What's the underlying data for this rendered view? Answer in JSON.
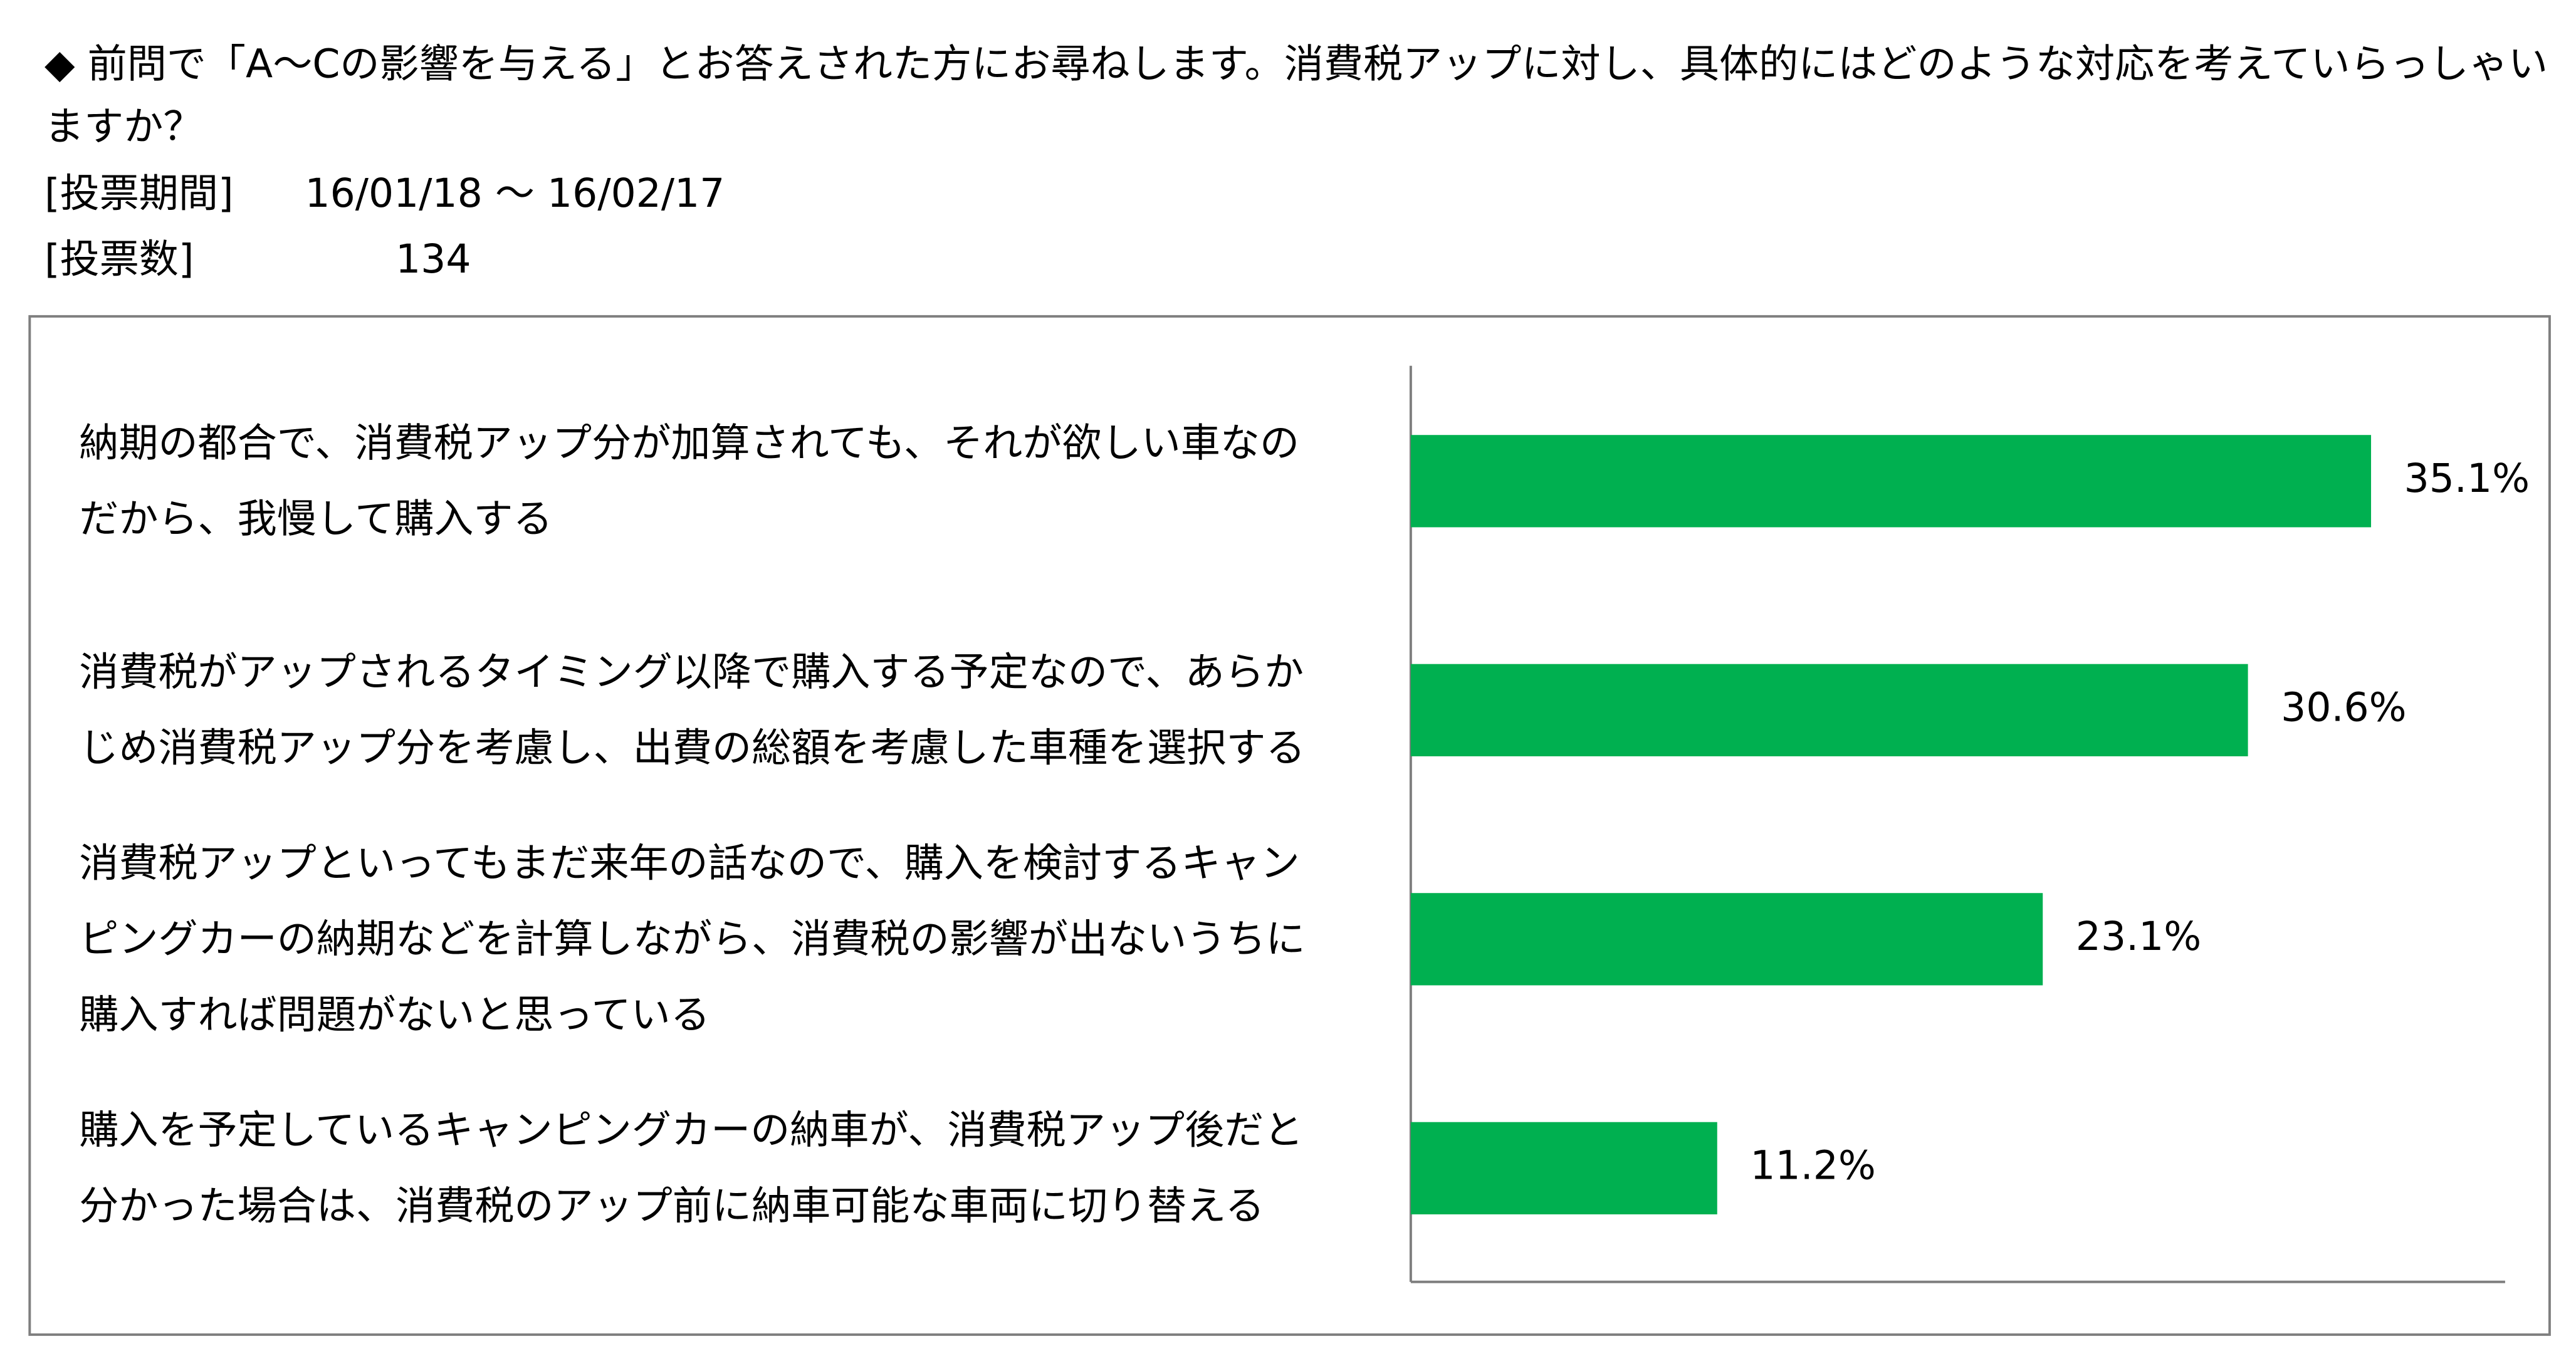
{
  "header": {
    "question": "◆ 前問で「A～Cの影響を与える」とお答えされた方にお尋ねします。消費税アップに対し、具体的にはどのような対応を考えていらっしゃいますか？",
    "period_label": "[投票期間]",
    "period": "16/01/18 ～ 16/02/17",
    "count_label": "[投票数]",
    "count": 134
  },
  "chart_data": {
    "type": "bar",
    "orientation": "horizontal",
    "categories": [
      "納期の都合で、消費税アップ分が加算されても、それが欲しい車なのだから、我慢して購入する",
      "消費税がアップされるタイミング以降で購入する予定なので、あらかじめ消費税アップ分を考慮し、出費の総額を考慮した車種を選択する",
      "消費税アップといってもまだ来年の話なので、購入を検討するキャンピングカーの納期などを計算しながら、消費税の影響が出ないうちに購入すれば問題がないと思っている",
      "購入を予定しているキャンピングカーの納車が、消費税アップ後だと分かった場合は、消費税のアップ前に納車可能な車両に切り替える"
    ],
    "values": [
      35.1,
      30.6,
      23.1,
      11.2
    ],
    "value_labels": [
      "35.1%",
      "30.6%",
      "23.1%",
      "11.2%"
    ],
    "color": "#00b050",
    "xlim": [
      0,
      40
    ],
    "grid": false
  }
}
